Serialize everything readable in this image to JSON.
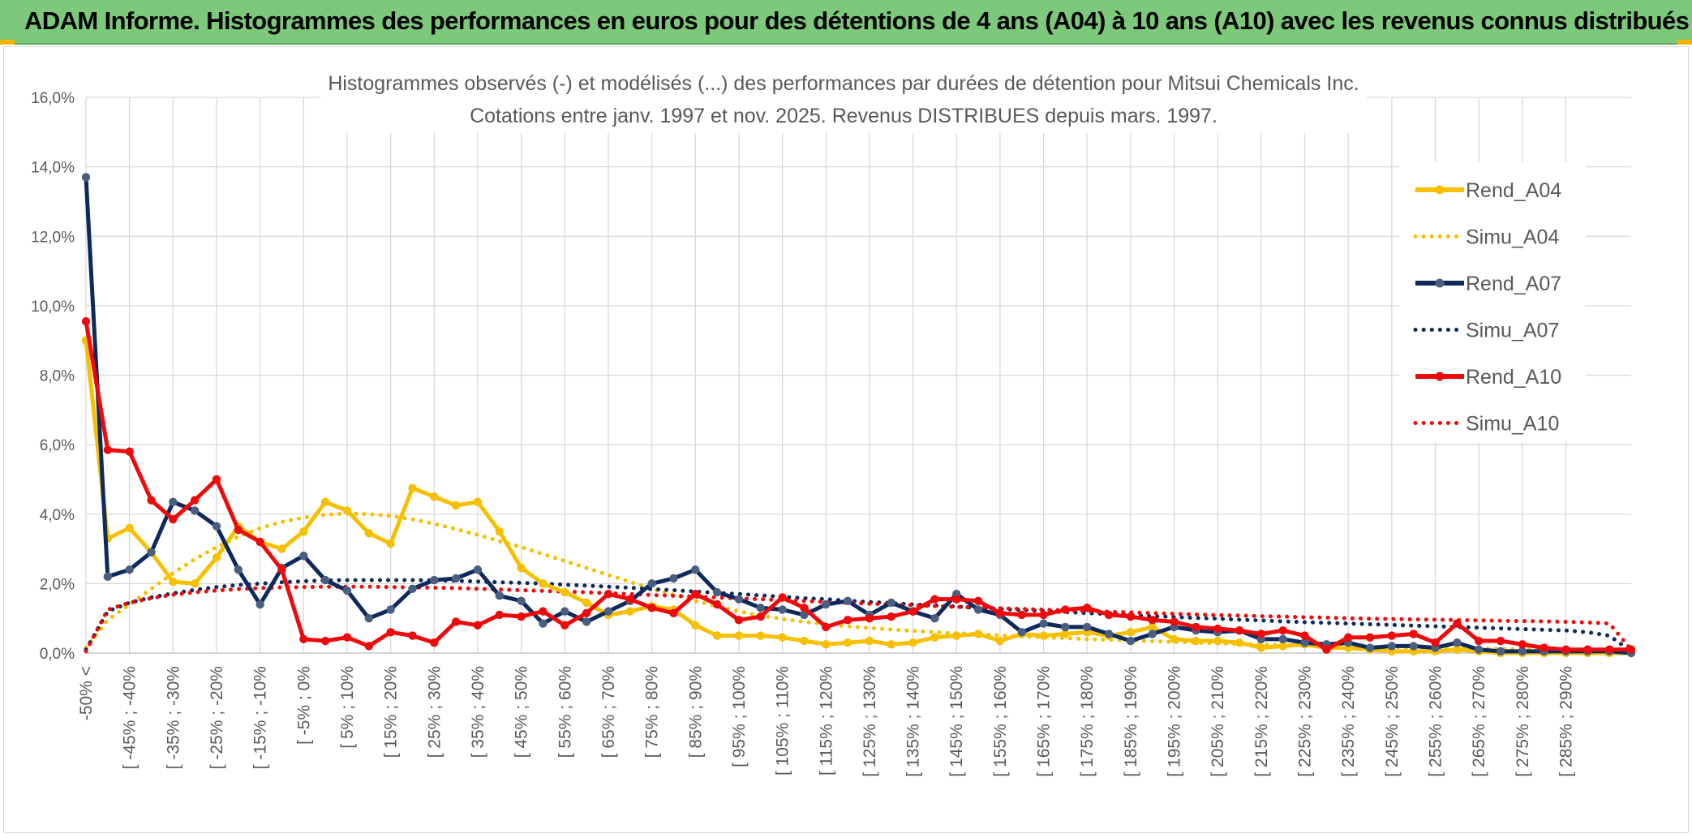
{
  "banner": {
    "title": "ADAM Informe. Histogrammes des performances en euros pour des détentions de 4 ans (A04) à 10 ans (A10) avec les revenus connus distribués"
  },
  "colors": {
    "banner_bg": "#7dc97b",
    "A04": "#f6c000",
    "A07": "#0e2a5c",
    "A10": "#ee0a0a",
    "grid": "#d9d9d9"
  },
  "chart_data": {
    "type": "line",
    "title": "Histogrammes observés (-) et modélisés (...) des performances par durées de détention pour Mitsui Chemicals Inc.",
    "subtitle": "Cotations entre janv. 1997 et nov. 2025. Revenus DISTRIBUES depuis mars. 1997.",
    "ylim": [
      0,
      16
    ],
    "yticks": [
      "0,0%",
      "2,0%",
      "4,0%",
      "6,0%",
      "8,0%",
      "10,0%",
      "12,0%",
      "14,0%",
      "16,0%"
    ],
    "grid": true,
    "legend_position": "right",
    "x_tick_labels": [
      "-50% <",
      "[ -45% ; -40%",
      "[ -35% ; -30%",
      "[ -25% ; -20%",
      "[ -15% ; -10%",
      "[ -5% ; 0%",
      "[ 5% ; 10%",
      "[ 15% ; 20%",
      "[ 25% ; 30%",
      "[ 35% ; 40%",
      "[ 45% ; 50%",
      "[ 55% ; 60%",
      "[ 65% ; 70%",
      "[ 75% ; 80%",
      "[ 85% ; 90%",
      "[ 95% ; 100%",
      "[ 105% ; 110%",
      "[ 115% ; 120%",
      "[ 125% ; 130%",
      "[ 135% ; 140%",
      "[ 145% ; 150%",
      "[ 155% ; 160%",
      "[ 165% ; 170%",
      "[ 175% ; 180%",
      "[ 185% ; 190%",
      "[ 195% ; 200%",
      "[ 205% ; 210%",
      "[ 215% ; 220%",
      "[ 225% ; 230%",
      "[ 235% ; 240%",
      "[ 245% ; 250%",
      "[ 255% ; 260%",
      "[ 265% ; 270%",
      "[ 275% ; 280%",
      "[ 285% ; 290%"
    ],
    "n_points": 72,
    "series": [
      {
        "name": "Rend_A04",
        "style": "solid",
        "color": "#f6c000",
        "values": [
          9.0,
          3.3,
          3.6,
          2.9,
          2.05,
          2.0,
          2.75,
          3.65,
          3.2,
          3.0,
          3.5,
          4.35,
          4.1,
          3.45,
          3.15,
          4.75,
          4.5,
          4.25,
          4.35,
          3.5,
          2.45,
          2.0,
          1.75,
          1.45,
          1.1,
          1.2,
          1.35,
          1.25,
          0.8,
          0.5,
          0.5,
          0.5,
          0.45,
          0.35,
          0.25,
          0.3,
          0.35,
          0.25,
          0.3,
          0.45,
          0.5,
          0.55,
          0.35,
          0.55,
          0.5,
          0.55,
          0.6,
          0.5,
          0.6,
          0.75,
          0.4,
          0.35,
          0.35,
          0.3,
          0.15,
          0.2,
          0.25,
          0.15,
          0.15,
          0.1,
          0.05,
          0.05,
          0.05,
          0.1,
          0.05,
          0.0,
          0.0,
          0.0,
          0.0,
          0.0,
          0.0,
          0.0
        ]
      },
      {
        "name": "Simu_A04",
        "style": "dotted",
        "color": "#f6c000",
        "values": [
          0.15,
          0.95,
          1.4,
          1.85,
          2.3,
          2.7,
          3.05,
          3.35,
          3.6,
          3.78,
          3.9,
          3.98,
          4.02,
          4.0,
          3.95,
          3.85,
          3.72,
          3.57,
          3.4,
          3.22,
          3.05,
          2.85,
          2.65,
          2.45,
          2.25,
          2.05,
          1.85,
          1.68,
          1.5,
          1.35,
          1.2,
          1.08,
          0.98,
          0.9,
          0.83,
          0.77,
          0.72,
          0.68,
          0.64,
          0.6,
          0.57,
          0.54,
          0.51,
          0.48,
          0.45,
          0.43,
          0.4,
          0.38,
          0.36,
          0.34,
          0.32,
          0.3,
          0.28,
          0.26,
          0.25,
          0.23,
          0.22,
          0.2,
          0.19,
          0.18,
          0.17,
          0.16,
          0.15,
          0.14,
          0.13,
          0.12,
          0.11,
          0.1,
          0.09,
          0.08,
          0.07,
          0.06
        ]
      },
      {
        "name": "Rend_A07",
        "style": "solid",
        "color": "#0e2a5c",
        "values": [
          13.7,
          2.2,
          2.4,
          2.9,
          4.35,
          4.1,
          3.65,
          2.4,
          1.4,
          2.45,
          2.8,
          2.1,
          1.8,
          1.0,
          1.25,
          1.85,
          2.1,
          2.15,
          2.4,
          1.65,
          1.5,
          0.85,
          1.2,
          0.9,
          1.2,
          1.5,
          2.0,
          2.15,
          2.4,
          1.75,
          1.55,
          1.3,
          1.25,
          1.1,
          1.4,
          1.5,
          1.1,
          1.45,
          1.2,
          1.0,
          1.7,
          1.25,
          1.1,
          0.6,
          0.85,
          0.75,
          0.75,
          0.55,
          0.35,
          0.55,
          0.75,
          0.65,
          0.6,
          0.65,
          0.4,
          0.4,
          0.3,
          0.25,
          0.3,
          0.15,
          0.2,
          0.2,
          0.15,
          0.3,
          0.1,
          0.05,
          0.05,
          0.05,
          0.05,
          0.05,
          0.05,
          0.0
        ]
      },
      {
        "name": "Simu_A07",
        "style": "dotted",
        "color": "#0e2a5c",
        "values": [
          0.1,
          1.2,
          1.45,
          1.6,
          1.72,
          1.82,
          1.9,
          1.96,
          2.0,
          2.04,
          2.07,
          2.09,
          2.1,
          2.1,
          2.1,
          2.1,
          2.09,
          2.08,
          2.06,
          2.04,
          2.02,
          2.0,
          1.97,
          1.94,
          1.91,
          1.88,
          1.84,
          1.81,
          1.77,
          1.73,
          1.7,
          1.66,
          1.62,
          1.58,
          1.55,
          1.51,
          1.47,
          1.44,
          1.4,
          1.37,
          1.34,
          1.3,
          1.27,
          1.24,
          1.21,
          1.18,
          1.15,
          1.12,
          1.09,
          1.06,
          1.04,
          1.01,
          0.99,
          0.96,
          0.94,
          0.91,
          0.89,
          0.87,
          0.85,
          0.83,
          0.81,
          0.79,
          0.77,
          0.75,
          0.73,
          0.71,
          0.69,
          0.67,
          0.65,
          0.6,
          0.5,
          0.05
        ]
      },
      {
        "name": "Rend_A10",
        "style": "solid",
        "color": "#ee0a0a",
        "values": [
          9.55,
          5.85,
          5.8,
          4.4,
          3.85,
          4.4,
          5.0,
          3.55,
          3.2,
          2.4,
          0.4,
          0.35,
          0.45,
          0.2,
          0.6,
          0.5,
          0.3,
          0.9,
          0.8,
          1.1,
          1.05,
          1.2,
          0.8,
          1.15,
          1.7,
          1.55,
          1.3,
          1.15,
          1.7,
          1.4,
          0.95,
          1.05,
          1.6,
          1.3,
          0.75,
          0.95,
          1.0,
          1.05,
          1.2,
          1.55,
          1.55,
          1.5,
          1.15,
          1.1,
          1.1,
          1.25,
          1.3,
          1.1,
          1.05,
          0.95,
          0.9,
          0.75,
          0.7,
          0.65,
          0.55,
          0.65,
          0.5,
          0.1,
          0.45,
          0.45,
          0.5,
          0.55,
          0.3,
          0.85,
          0.35,
          0.35,
          0.25,
          0.15,
          0.1,
          0.1,
          0.1,
          0.1
        ]
      },
      {
        "name": "Simu_A10",
        "style": "dotted",
        "color": "#ee0a0a",
        "values": [
          0.05,
          1.25,
          1.45,
          1.58,
          1.68,
          1.75,
          1.8,
          1.84,
          1.87,
          1.89,
          1.9,
          1.91,
          1.91,
          1.91,
          1.9,
          1.89,
          1.88,
          1.87,
          1.85,
          1.83,
          1.81,
          1.79,
          1.77,
          1.75,
          1.72,
          1.7,
          1.67,
          1.65,
          1.62,
          1.6,
          1.57,
          1.55,
          1.52,
          1.5,
          1.47,
          1.45,
          1.42,
          1.4,
          1.38,
          1.35,
          1.33,
          1.31,
          1.29,
          1.27,
          1.25,
          1.23,
          1.21,
          1.19,
          1.17,
          1.15,
          1.13,
          1.11,
          1.09,
          1.08,
          1.06,
          1.05,
          1.03,
          1.02,
          1.0,
          0.99,
          0.98,
          0.97,
          0.96,
          0.95,
          0.94,
          0.93,
          0.92,
          0.91,
          0.9,
          0.88,
          0.85,
          0.1
        ]
      }
    ]
  }
}
